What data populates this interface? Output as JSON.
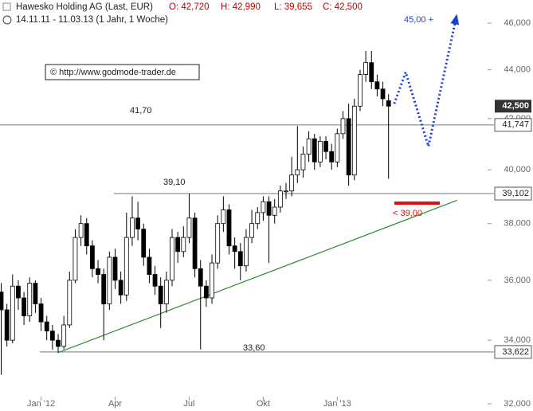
{
  "chart_data": {
    "type": "candlestick",
    "title": "Hawesko Holding AG (Last, EUR)",
    "ohlc_header": [
      "O: 42,720",
      "H: 42,990",
      "L: 39,655",
      "C: 42,500"
    ],
    "subtitle": "14.11.11 - 11.03.13 (1 Jahr, 1 Woche)",
    "watermark": "© http://www.godmode-trader.de",
    "log_scale": true,
    "up_color": "#ffffff",
    "down_color": "#000000",
    "categories": [
      null,
      null,
      null,
      null,
      null,
      null,
      null,
      "Jan '12",
      null,
      null,
      null,
      null,
      null,
      null,
      null,
      null,
      null,
      null,
      null,
      null,
      "Apr",
      null,
      null,
      null,
      null,
      null,
      null,
      null,
      null,
      null,
      null,
      null,
      null,
      "Jul",
      null,
      null,
      null,
      null,
      null,
      null,
      null,
      null,
      null,
      null,
      null,
      null,
      "Okt",
      null,
      null,
      null,
      null,
      null,
      null,
      null,
      null,
      null,
      null,
      null,
      null,
      "Jan '13",
      null,
      null,
      null,
      null,
      null,
      null,
      null,
      null,
      null
    ],
    "open": [
      35.6,
      35.0,
      34.0,
      35.8,
      35.4,
      34.8,
      35.9,
      35.2,
      34.6,
      34.3,
      34.0,
      33.8,
      34.5,
      36.0,
      37.5,
      38.0,
      37.2,
      36.4,
      36.2,
      35.2,
      36.8,
      36.0,
      35.5,
      37.5,
      38.2,
      37.8,
      36.8,
      36.2,
      35.8,
      35.2,
      36.0,
      37.5,
      37.0,
      37.5,
      38.2,
      36.4,
      35.8,
      35.4,
      36.6,
      38.0,
      38.5,
      37.2,
      37.0,
      36.5,
      37.5,
      38.0,
      38.4,
      38.8,
      38.3,
      38.6,
      39.2,
      39.2,
      39.8,
      40.0,
      40.6,
      41.2,
      40.3,
      41.1,
      40.7,
      40.3,
      41.4,
      42.0,
      39.8,
      42.5,
      43.8,
      44.3,
      43.5,
      43.2,
      42.72
    ],
    "high": [
      35.9,
      35.2,
      36.2,
      36.0,
      35.6,
      36.1,
      36.0,
      35.4,
      34.8,
      34.5,
      34.2,
      34.8,
      36.3,
      37.8,
      38.3,
      38.2,
      37.4,
      36.7,
      36.4,
      37.0,
      37.1,
      36.3,
      38.4,
      39.0,
      38.8,
      38.0,
      37.1,
      36.5,
      36.1,
      36.3,
      37.8,
      37.7,
      37.9,
      39.1,
      38.4,
      36.7,
      36.0,
      36.9,
      38.3,
      39.0,
      38.7,
      37.5,
      37.3,
      37.8,
      38.5,
      38.6,
      39.0,
      39.0,
      38.9,
      39.4,
      39.5,
      40.5,
      41.7,
      40.9,
      41.5,
      41.4,
      41.3,
      41.3,
      41.0,
      41.6,
      42.3,
      42.6,
      42.8,
      44.0,
      44.8,
      44.8,
      43.8,
      43.5,
      42.99
    ],
    "low": [
      32.9,
      33.8,
      33.9,
      35.0,
      34.5,
      34.6,
      34.9,
      34.3,
      34.0,
      33.7,
      33.6,
      33.7,
      34.4,
      35.9,
      37.2,
      36.9,
      36.1,
      35.9,
      34.0,
      35.0,
      35.7,
      35.2,
      35.3,
      37.2,
      37.4,
      36.5,
      35.9,
      35.5,
      34.4,
      34.9,
      35.8,
      36.6,
      36.8,
      37.3,
      36.1,
      33.7,
      35.1,
      35.2,
      36.4,
      37.7,
      36.9,
      36.4,
      36.0,
      36.3,
      37.3,
      37.8,
      38.1,
      36.6,
      38.0,
      38.4,
      38.9,
      39.0,
      39.5,
      39.7,
      40.3,
      40.0,
      40.1,
      40.4,
      40.0,
      40.1,
      41.2,
      39.4,
      39.6,
      42.3,
      43.5,
      43.2,
      42.9,
      42.5,
      39.655
    ],
    "close": [
      35.0,
      34.0,
      35.8,
      35.4,
      34.8,
      35.9,
      35.2,
      34.6,
      34.3,
      34.0,
      33.8,
      34.5,
      36.0,
      37.5,
      38.0,
      37.2,
      36.4,
      36.2,
      35.2,
      36.8,
      36.0,
      35.5,
      37.5,
      38.2,
      37.8,
      36.8,
      36.2,
      35.8,
      35.2,
      36.0,
      37.5,
      37.0,
      37.5,
      38.2,
      36.4,
      35.8,
      35.4,
      36.6,
      38.0,
      38.5,
      37.2,
      37.0,
      36.5,
      37.5,
      38.0,
      38.4,
      38.8,
      38.3,
      38.6,
      39.2,
      39.2,
      39.8,
      40.0,
      40.6,
      41.2,
      40.3,
      41.1,
      40.7,
      40.3,
      41.4,
      42.0,
      39.8,
      42.5,
      43.8,
      44.3,
      43.5,
      43.2,
      42.8,
      42.5
    ],
    "ylim": [
      32,
      46.6
    ],
    "yticks": [
      {
        "value": 32,
        "label": "32,000"
      },
      {
        "value": 34,
        "label": "34,000"
      },
      {
        "value": 36,
        "label": "36,000"
      },
      {
        "value": 38,
        "label": "38,000"
      },
      {
        "value": 40,
        "label": "40,000"
      },
      {
        "value": 42,
        "label": "42,000"
      },
      {
        "value": 44,
        "label": "44,000"
      },
      {
        "value": 46,
        "label": "46,000"
      }
    ],
    "last_price": {
      "value": 42.5,
      "label": "42,500"
    },
    "levels": [
      {
        "value": 41.747,
        "label": "41,747"
      },
      {
        "value": 39.102,
        "label": "39,102"
      },
      {
        "value": 33.622,
        "label": "33,622"
      }
    ],
    "level_annotations": [
      "41,70",
      "39,10",
      "33,60"
    ],
    "trendline": {
      "color": "#2e8b2e",
      "x": [
        10,
        80
      ],
      "y": [
        33.6,
        38.85
      ]
    },
    "forecast": {
      "color": "#1a3fe0",
      "label": "45,00 +",
      "x": [
        69,
        71,
        75,
        80
      ],
      "y": [
        42.6,
        43.9,
        40.9,
        46.4
      ]
    },
    "stop": {
      "color": "#e01010",
      "label": "< 39,00",
      "x": [
        69,
        77
      ],
      "value": 38.75
    }
  }
}
